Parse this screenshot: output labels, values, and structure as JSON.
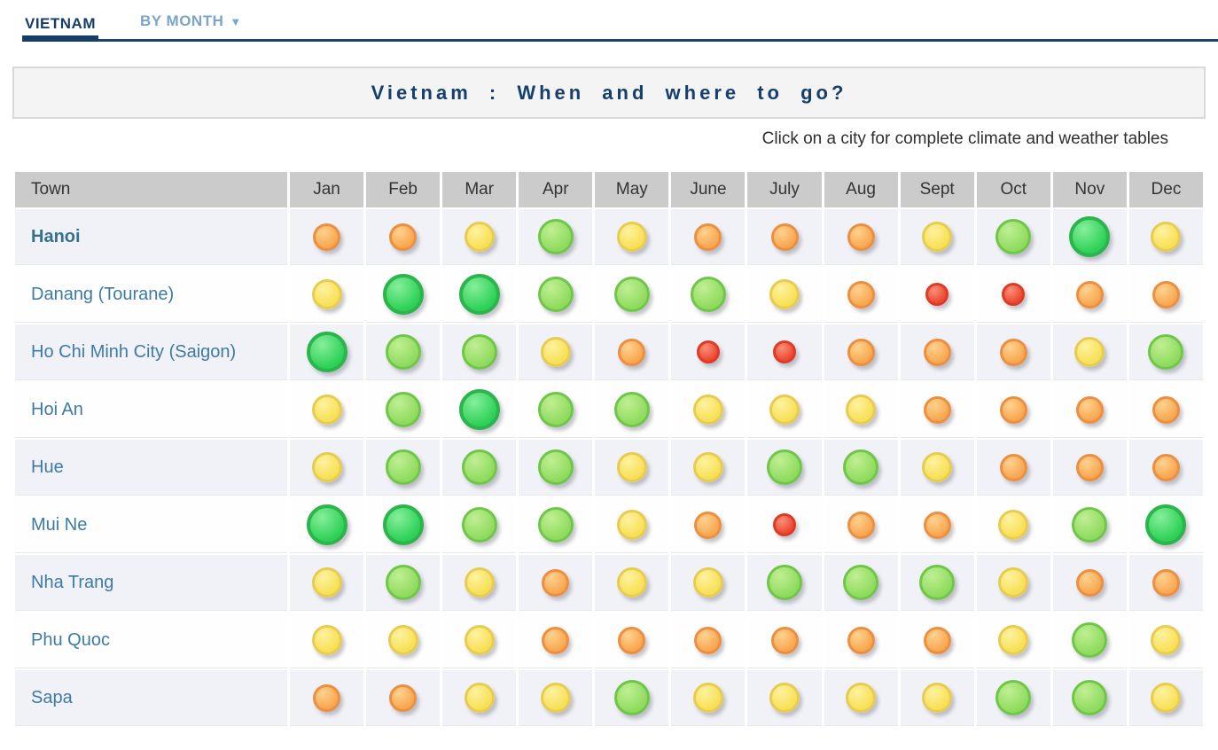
{
  "tabs": [
    {
      "label": "VIETNAM",
      "active": true
    },
    {
      "label": "BY MONTH",
      "icon": "▼",
      "active": false
    }
  ],
  "title": "Vietnam : When and where to go?",
  "subtitle": "Click on a city for complete climate and weather tables",
  "colors": {
    "nav_active": "#153e69",
    "nav_inactive": "#7ba4ca",
    "title_text": "#163f6c",
    "town_link": "#3e7aa6",
    "header_bg": "#cbcbcb",
    "row_alt_bg": "#f1f2f7"
  },
  "legend": {
    "1": {
      "name": "red",
      "highlight": "#fa9077",
      "fill": "#ee4933",
      "border": "#de3b27",
      "size": 26,
      "border_width": 3
    },
    "2": {
      "name": "orange",
      "highlight": "#fed290",
      "fill": "#f9a74f",
      "border": "#eb8f42",
      "size": 31,
      "border_width": 3
    },
    "3": {
      "name": "yellow",
      "highlight": "#fdf2a0",
      "fill": "#f8e055",
      "border": "#e6cc52",
      "size": 34,
      "border_width": 3
    },
    "4": {
      "name": "light-green",
      "highlight": "#c0ef93",
      "fill": "#8fdb5e",
      "border": "#6fc64a",
      "size": 40,
      "border_width": 3
    },
    "5": {
      "name": "green",
      "highlight": "#86ef9b",
      "fill": "#2ed157",
      "border": "#2cb44d",
      "size": 46,
      "border_width": 4
    }
  },
  "table": {
    "town_header": "Town",
    "month_headers": [
      "Jan",
      "Feb",
      "Mar",
      "Apr",
      "May",
      "June",
      "July",
      "Aug",
      "Sept",
      "Oct",
      "Nov",
      "Dec"
    ],
    "rows": [
      {
        "town": "Hanoi",
        "bold": true,
        "months": [
          2,
          2,
          3,
          4,
          3,
          2,
          2,
          2,
          3,
          4,
          5,
          3
        ]
      },
      {
        "town": "Danang (Tourane)",
        "bold": false,
        "months": [
          3,
          5,
          5,
          4,
          4,
          4,
          3,
          2,
          1,
          1,
          2,
          2
        ]
      },
      {
        "town": "Ho Chi Minh City (Saigon)",
        "bold": false,
        "months": [
          5,
          4,
          4,
          3,
          2,
          1,
          1,
          2,
          2,
          2,
          3,
          4
        ]
      },
      {
        "town": "Hoi An",
        "bold": false,
        "months": [
          3,
          4,
          5,
          4,
          4,
          3,
          3,
          3,
          2,
          2,
          2,
          2
        ]
      },
      {
        "town": "Hue",
        "bold": false,
        "months": [
          3,
          4,
          4,
          4,
          3,
          3,
          4,
          4,
          3,
          2,
          2,
          2
        ]
      },
      {
        "town": "Mui Ne",
        "bold": false,
        "months": [
          5,
          5,
          4,
          4,
          3,
          2,
          1,
          2,
          2,
          3,
          4,
          5
        ]
      },
      {
        "town": "Nha Trang",
        "bold": false,
        "months": [
          3,
          4,
          3,
          2,
          3,
          3,
          4,
          4,
          4,
          3,
          2,
          2
        ]
      },
      {
        "town": "Phu Quoc",
        "bold": false,
        "months": [
          3,
          3,
          3,
          2,
          2,
          2,
          2,
          2,
          2,
          3,
          4,
          3
        ]
      },
      {
        "town": "Sapa",
        "bold": false,
        "months": [
          2,
          2,
          3,
          3,
          4,
          3,
          3,
          3,
          3,
          4,
          4,
          3
        ]
      }
    ]
  }
}
